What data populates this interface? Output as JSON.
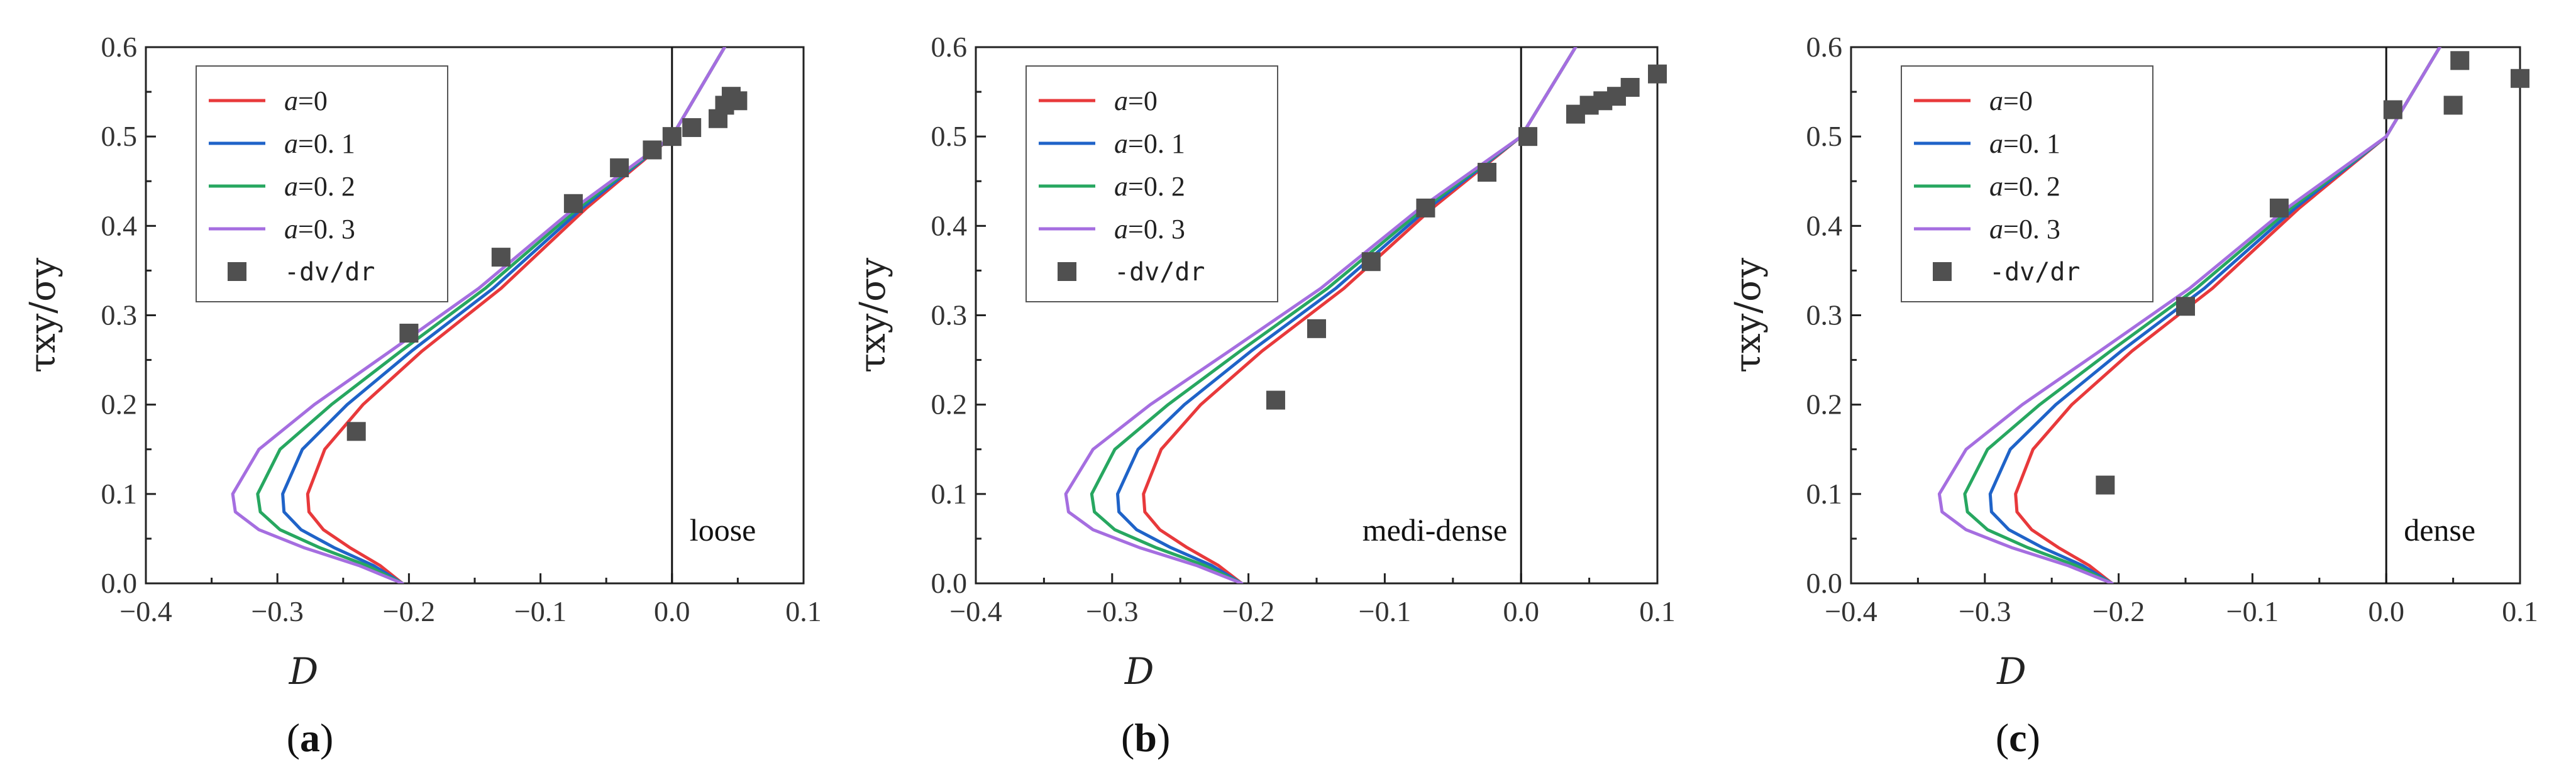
{
  "chart_data": [
    {
      "type": "line",
      "panel_label": "a",
      "annotation": "loose",
      "xlabel": "D",
      "ylabel": "τxy/σy",
      "xlim": [
        -0.4,
        0.1
      ],
      "ylim": [
        0.0,
        0.6
      ],
      "x_ticks": [
        -0.4,
        -0.3,
        -0.2,
        -0.1,
        0.0,
        0.1
      ],
      "x_tick_labels": [
        "−0.4",
        "−0.3",
        "−0.2",
        "−0.1",
        "0.0",
        "0.1"
      ],
      "y_ticks": [
        0.0,
        0.1,
        0.2,
        0.3,
        0.4,
        0.5,
        0.6
      ],
      "y_tick_labels": [
        "0.0",
        "0.1",
        "0.2",
        "0.3",
        "0.4",
        "0.5",
        "0.6"
      ],
      "legend_position": "top-left",
      "vertical_reference_line_x": 0.0,
      "series": [
        {
          "name": "a=0",
          "legend_italic": "a",
          "legend_rest": "=0",
          "color": "#e8393b",
          "x": [
            -0.205,
            -0.222,
            -0.245,
            -0.265,
            -0.276,
            -0.277,
            -0.264,
            -0.235,
            -0.19,
            -0.13,
            -0.065,
            0.0,
            0.04
          ],
          "y": [
            0.0,
            0.02,
            0.04,
            0.06,
            0.08,
            0.1,
            0.15,
            0.2,
            0.26,
            0.33,
            0.42,
            0.5,
            0.6
          ]
        },
        {
          "name": "a=0.1",
          "legend_italic": "a",
          "legend_rest": "=0. 1",
          "color": "#1f63c8",
          "x": [
            -0.205,
            -0.227,
            -0.257,
            -0.282,
            -0.295,
            -0.296,
            -0.281,
            -0.247,
            -0.198,
            -0.136,
            -0.068,
            0.0,
            0.04
          ],
          "y": [
            0.0,
            0.02,
            0.04,
            0.06,
            0.08,
            0.1,
            0.15,
            0.2,
            0.26,
            0.33,
            0.42,
            0.5,
            0.6
          ]
        },
        {
          "name": "a=0.2",
          "legend_italic": "a",
          "legend_rest": "=0. 2",
          "color": "#27a760",
          "x": [
            -0.205,
            -0.232,
            -0.268,
            -0.298,
            -0.313,
            -0.315,
            -0.298,
            -0.259,
            -0.206,
            -0.142,
            -0.071,
            0.0,
            0.04
          ],
          "y": [
            0.0,
            0.02,
            0.04,
            0.06,
            0.08,
            0.1,
            0.15,
            0.2,
            0.26,
            0.33,
            0.42,
            0.5,
            0.6
          ]
        },
        {
          "name": "a=0.3",
          "legend_italic": "a",
          "legend_rest": "=0. 3",
          "color": "#a56ee0",
          "x": [
            -0.205,
            -0.238,
            -0.28,
            -0.314,
            -0.332,
            -0.334,
            -0.314,
            -0.272,
            -0.214,
            -0.147,
            -0.074,
            0.0,
            0.04
          ],
          "y": [
            0.0,
            0.02,
            0.04,
            0.06,
            0.08,
            0.1,
            0.15,
            0.2,
            0.26,
            0.33,
            0.42,
            0.5,
            0.6
          ]
        }
      ],
      "scatter": {
        "name": "-dv/dr",
        "color": "#505050",
        "x": [
          -0.24,
          -0.2,
          -0.13,
          -0.075,
          -0.04,
          -0.015,
          0.0,
          0.015,
          0.035,
          0.04,
          0.045,
          0.05
        ],
        "y": [
          0.17,
          0.28,
          0.365,
          0.425,
          0.465,
          0.485,
          0.5,
          0.51,
          0.52,
          0.535,
          0.545,
          0.54
        ]
      }
    },
    {
      "type": "line",
      "panel_label": "b",
      "annotation": "medi-dense",
      "xlabel": "D",
      "ylabel": "τxy/σy",
      "xlim": [
        -0.4,
        0.1
      ],
      "ylim": [
        0.0,
        0.6
      ],
      "x_ticks": [
        -0.4,
        -0.3,
        -0.2,
        -0.1,
        0.0,
        0.1
      ],
      "x_tick_labels": [
        "−0.4",
        "−0.3",
        "−0.2",
        "−0.1",
        "0.0",
        "0.1"
      ],
      "y_ticks": [
        0.0,
        0.1,
        0.2,
        0.3,
        0.4,
        0.5,
        0.6
      ],
      "y_tick_labels": [
        "0.0",
        "0.1",
        "0.2",
        "0.3",
        "0.4",
        "0.5",
        "0.6"
      ],
      "legend_position": "top-left",
      "vertical_reference_line_x": 0.0,
      "series": [
        {
          "name": "a=0",
          "legend_italic": "a",
          "legend_rest": "=0",
          "color": "#e8393b",
          "x": [
            -0.205,
            -0.222,
            -0.245,
            -0.265,
            -0.276,
            -0.277,
            -0.264,
            -0.235,
            -0.19,
            -0.13,
            -0.065,
            0.0,
            0.04
          ],
          "y": [
            0.0,
            0.02,
            0.04,
            0.06,
            0.08,
            0.1,
            0.15,
            0.2,
            0.26,
            0.33,
            0.42,
            0.5,
            0.6
          ]
        },
        {
          "name": "a=0.1",
          "legend_italic": "a",
          "legend_rest": "=0. 1",
          "color": "#1f63c8",
          "x": [
            -0.205,
            -0.227,
            -0.257,
            -0.282,
            -0.295,
            -0.296,
            -0.281,
            -0.247,
            -0.198,
            -0.136,
            -0.068,
            0.0,
            0.04
          ],
          "y": [
            0.0,
            0.02,
            0.04,
            0.06,
            0.08,
            0.1,
            0.15,
            0.2,
            0.26,
            0.33,
            0.42,
            0.5,
            0.6
          ]
        },
        {
          "name": "a=0.2",
          "legend_italic": "a",
          "legend_rest": "=0. 2",
          "color": "#27a760",
          "x": [
            -0.205,
            -0.232,
            -0.268,
            -0.298,
            -0.313,
            -0.315,
            -0.298,
            -0.259,
            -0.206,
            -0.142,
            -0.071,
            0.0,
            0.04
          ],
          "y": [
            0.0,
            0.02,
            0.04,
            0.06,
            0.08,
            0.1,
            0.15,
            0.2,
            0.26,
            0.33,
            0.42,
            0.5,
            0.6
          ]
        },
        {
          "name": "a=0.3",
          "legend_italic": "a",
          "legend_rest": "=0. 3",
          "color": "#a56ee0",
          "x": [
            -0.205,
            -0.238,
            -0.28,
            -0.314,
            -0.332,
            -0.334,
            -0.314,
            -0.272,
            -0.214,
            -0.147,
            -0.074,
            0.0,
            0.04
          ],
          "y": [
            0.0,
            0.02,
            0.04,
            0.06,
            0.08,
            0.1,
            0.15,
            0.2,
            0.26,
            0.33,
            0.42,
            0.5,
            0.6
          ]
        }
      ],
      "scatter": {
        "name": "-dv/dr",
        "color": "#505050",
        "x": [
          -0.18,
          -0.15,
          -0.11,
          -0.07,
          -0.025,
          0.005,
          0.04,
          0.05,
          0.06,
          0.07,
          0.08,
          0.1
        ],
        "y": [
          0.205,
          0.285,
          0.36,
          0.42,
          0.46,
          0.5,
          0.525,
          0.535,
          0.54,
          0.545,
          0.555,
          0.57
        ]
      }
    },
    {
      "type": "line",
      "panel_label": "c",
      "annotation": "dense",
      "xlabel": "D",
      "ylabel": "τxy/σy",
      "xlim": [
        -0.4,
        0.1
      ],
      "ylim": [
        0.0,
        0.6
      ],
      "x_ticks": [
        -0.4,
        -0.3,
        -0.2,
        -0.1,
        0.0,
        0.1
      ],
      "x_tick_labels": [
        "−0.4",
        "−0.3",
        "−0.2",
        "−0.1",
        "0.0",
        "0.1"
      ],
      "y_ticks": [
        0.0,
        0.1,
        0.2,
        0.3,
        0.4,
        0.5,
        0.6
      ],
      "y_tick_labels": [
        "0.0",
        "0.1",
        "0.2",
        "0.3",
        "0.4",
        "0.5",
        "0.6"
      ],
      "legend_position": "top-left",
      "vertical_reference_line_x": 0.0,
      "series": [
        {
          "name": "a=0",
          "legend_italic": "a",
          "legend_rest": "=0",
          "color": "#e8393b",
          "x": [
            -0.205,
            -0.222,
            -0.245,
            -0.265,
            -0.276,
            -0.277,
            -0.264,
            -0.235,
            -0.19,
            -0.13,
            -0.065,
            0.0,
            0.04
          ],
          "y": [
            0.0,
            0.02,
            0.04,
            0.06,
            0.08,
            0.1,
            0.15,
            0.2,
            0.26,
            0.33,
            0.42,
            0.5,
            0.6
          ]
        },
        {
          "name": "a=0.1",
          "legend_italic": "a",
          "legend_rest": "=0. 1",
          "color": "#1f63c8",
          "x": [
            -0.205,
            -0.227,
            -0.257,
            -0.282,
            -0.295,
            -0.296,
            -0.281,
            -0.247,
            -0.198,
            -0.136,
            -0.068,
            0.0,
            0.04
          ],
          "y": [
            0.0,
            0.02,
            0.04,
            0.06,
            0.08,
            0.1,
            0.15,
            0.2,
            0.26,
            0.33,
            0.42,
            0.5,
            0.6
          ]
        },
        {
          "name": "a=0.2",
          "legend_italic": "a",
          "legend_rest": "=0. 2",
          "color": "#27a760",
          "x": [
            -0.205,
            -0.232,
            -0.268,
            -0.298,
            -0.313,
            -0.315,
            -0.298,
            -0.259,
            -0.206,
            -0.142,
            -0.071,
            0.0,
            0.04
          ],
          "y": [
            0.0,
            0.02,
            0.04,
            0.06,
            0.08,
            0.1,
            0.15,
            0.2,
            0.26,
            0.33,
            0.42,
            0.5,
            0.6
          ]
        },
        {
          "name": "a=0.3",
          "legend_italic": "a",
          "legend_rest": "=0. 3",
          "color": "#a56ee0",
          "x": [
            -0.205,
            -0.238,
            -0.28,
            -0.314,
            -0.332,
            -0.334,
            -0.314,
            -0.272,
            -0.214,
            -0.147,
            -0.074,
            0.0,
            0.04
          ],
          "y": [
            0.0,
            0.02,
            0.04,
            0.06,
            0.08,
            0.1,
            0.15,
            0.2,
            0.26,
            0.33,
            0.42,
            0.5,
            0.6
          ]
        }
      ],
      "scatter": {
        "name": "-dv/dr",
        "color": "#505050",
        "x": [
          -0.21,
          -0.15,
          -0.08,
          0.005,
          0.05,
          0.055,
          0.1
        ],
        "y": [
          0.11,
          0.31,
          0.42,
          0.53,
          0.535,
          0.585,
          0.565
        ]
      }
    }
  ]
}
